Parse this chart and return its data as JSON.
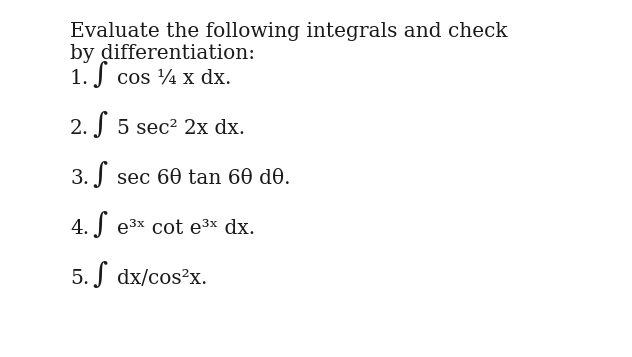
{
  "background_color": "#ffffff",
  "text_color": "#1a1a1a",
  "title_line1": "Evaluate the following integrals and check",
  "title_line2": "by differentiation:",
  "items": [
    {
      "num": "1.",
      "text": "cos ¼ x dx."
    },
    {
      "num": "2.",
      "text": "5 sec² 2x dx."
    },
    {
      "num": "3.",
      "text": "sec 6θ tan 6θ dθ."
    },
    {
      "num": "4.",
      "text": "e³ˣ cot e³ˣ dx."
    },
    {
      "num": "5.",
      "text": "dx/cos²x."
    }
  ],
  "font_size": 14.5,
  "integral_font_size": 21,
  "fig_width": 6.32,
  "fig_height": 3.57,
  "dpi": 100
}
